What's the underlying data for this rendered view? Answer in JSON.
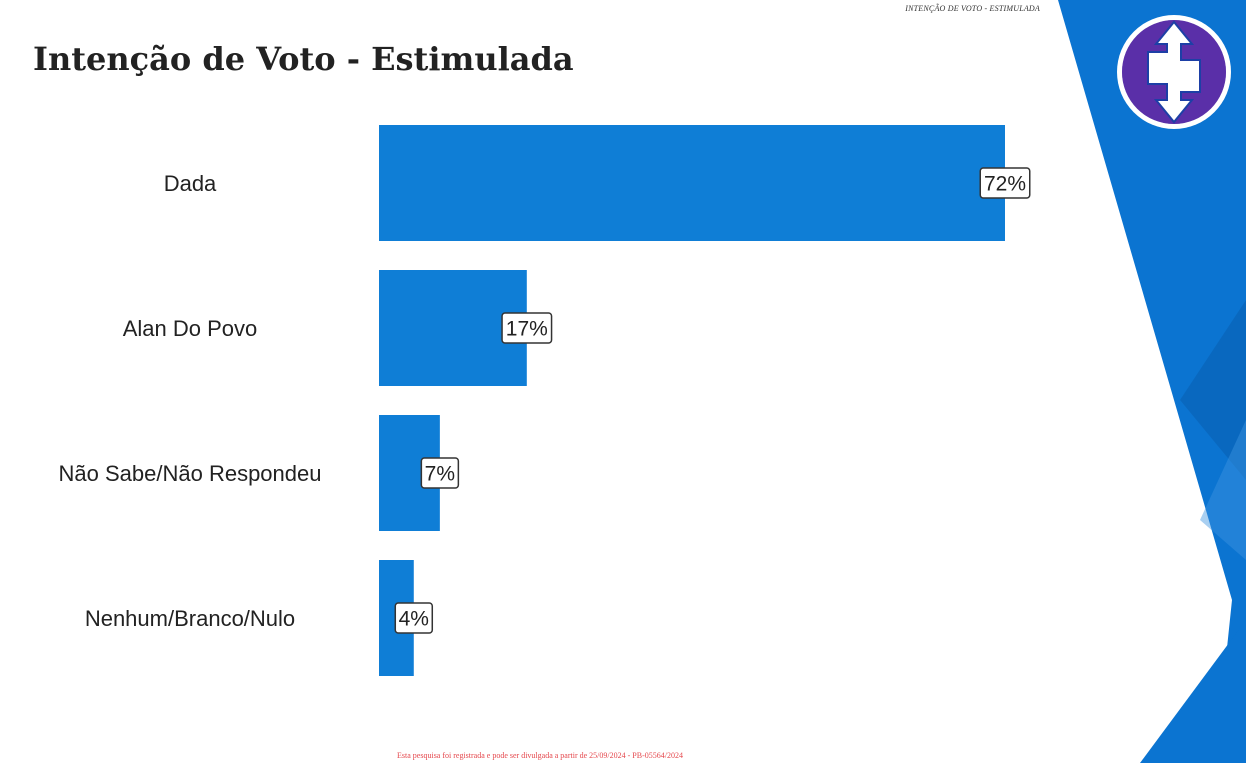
{
  "header_tag": "INTENÇÃO DE VOTO - ESTIMULADA",
  "title": "Intenção de Voto - Estimulada",
  "footer_note": "Esta pesquisa foi registrada e pode ser divulgada a partir de 25/09/2024 - PB-05564/2024",
  "logo": {
    "icon": "double-arrow-s-logo",
    "colors": [
      "#1d3fa6",
      "#7a2fb0",
      "#ffffff"
    ]
  },
  "colors": {
    "bar": "#0f7ed6",
    "accent_shape": "#0b74d1",
    "accent_dark": "#0a5fb0",
    "label_text": "#222222"
  },
  "chart_data": {
    "type": "bar",
    "orientation": "horizontal",
    "categories": [
      "Dada",
      "Alan Do Povo",
      "Não Sabe/Não Respondeu",
      "Nenhum/Branco/Nulo"
    ],
    "values": [
      72,
      17,
      7,
      4
    ],
    "value_labels": [
      "72%",
      "17%",
      "7%",
      "4%"
    ],
    "unit": "%",
    "xlim": [
      0,
      72
    ],
    "grid": false,
    "legend": "none"
  }
}
